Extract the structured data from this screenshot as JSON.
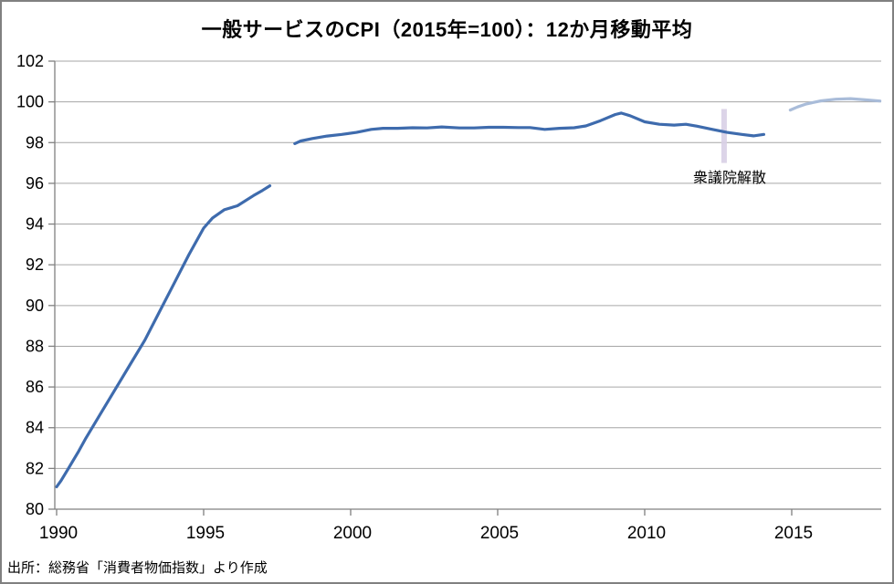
{
  "figure": {
    "background_color": "#FFFFFF",
    "border_color": "#808080"
  },
  "chart_data": {
    "type": "line",
    "title": "一般サービスのCPI（2015年=100）：12か月移動平均",
    "xlabel": "",
    "ylabel": "",
    "xlim": [
      1989.9,
      2018.1
    ],
    "ylim": [
      80,
      102
    ],
    "y_ticks": [
      80,
      82,
      84,
      86,
      88,
      90,
      92,
      94,
      96,
      98,
      100,
      102
    ],
    "x_ticks": [
      1990,
      1995,
      2000,
      2005,
      2010,
      2015
    ],
    "grid": "horizontal",
    "legend": "none",
    "gridline_color": "#A6A6A6",
    "axis_color": "#808080",
    "series": [
      {
        "name": "cpi-1990-1997",
        "color": "#3E6BAD",
        "points": [
          [
            1990.0,
            81.1
          ],
          [
            1990.15,
            81.4
          ],
          [
            1990.4,
            82.0
          ],
          [
            1990.75,
            82.85
          ],
          [
            1991.0,
            83.5
          ],
          [
            1991.5,
            84.7
          ],
          [
            1992.0,
            85.9
          ],
          [
            1992.5,
            87.1
          ],
          [
            1993.0,
            88.3
          ],
          [
            1993.5,
            89.7
          ],
          [
            1994.0,
            91.1
          ],
          [
            1994.5,
            92.5
          ],
          [
            1995.0,
            93.8
          ],
          [
            1995.3,
            94.3
          ],
          [
            1995.7,
            94.7
          ],
          [
            1996.15,
            94.9
          ],
          [
            1996.7,
            95.4
          ],
          [
            1997.0,
            95.65
          ],
          [
            1997.25,
            95.88
          ]
        ]
      },
      {
        "name": "cpi-1998-2014",
        "color": "#3E6BAD",
        "points": [
          [
            1998.1,
            97.95
          ],
          [
            1998.3,
            98.08
          ],
          [
            1998.7,
            98.2
          ],
          [
            1999.2,
            98.32
          ],
          [
            1999.7,
            98.4
          ],
          [
            2000.2,
            98.5
          ],
          [
            2000.7,
            98.65
          ],
          [
            2001.1,
            98.7
          ],
          [
            2001.6,
            98.7
          ],
          [
            2002.1,
            98.73
          ],
          [
            2002.6,
            98.72
          ],
          [
            2003.1,
            98.77
          ],
          [
            2003.7,
            98.72
          ],
          [
            2004.2,
            98.72
          ],
          [
            2004.7,
            98.75
          ],
          [
            2005.2,
            98.75
          ],
          [
            2005.7,
            98.74
          ],
          [
            2006.1,
            98.74
          ],
          [
            2006.6,
            98.65
          ],
          [
            2007.1,
            98.7
          ],
          [
            2007.6,
            98.73
          ],
          [
            2008.0,
            98.82
          ],
          [
            2008.5,
            99.08
          ],
          [
            2009.0,
            99.38
          ],
          [
            2009.2,
            99.45
          ],
          [
            2009.5,
            99.32
          ],
          [
            2010.0,
            99.02
          ],
          [
            2010.5,
            98.9
          ],
          [
            2011.0,
            98.86
          ],
          [
            2011.4,
            98.9
          ],
          [
            2011.8,
            98.8
          ],
          [
            2012.3,
            98.65
          ],
          [
            2012.8,
            98.5
          ],
          [
            2013.3,
            98.4
          ],
          [
            2013.7,
            98.33
          ],
          [
            2014.05,
            98.4
          ]
        ]
      },
      {
        "name": "cpi-2015-2018",
        "color": "#A9BCD9",
        "points": [
          [
            2014.95,
            99.6
          ],
          [
            2015.2,
            99.75
          ],
          [
            2015.5,
            99.9
          ],
          [
            2016.0,
            100.05
          ],
          [
            2016.5,
            100.13
          ],
          [
            2017.0,
            100.16
          ],
          [
            2017.5,
            100.1
          ],
          [
            2018.0,
            100.04
          ]
        ]
      }
    ],
    "event_marker": {
      "label": "衆議院解散",
      "x": 2012.7,
      "y_from": 97.0,
      "y_to": 99.65,
      "color": "#D8CFE6"
    },
    "source_note": "出所：総務省「消費者物価指数」より作成"
  }
}
